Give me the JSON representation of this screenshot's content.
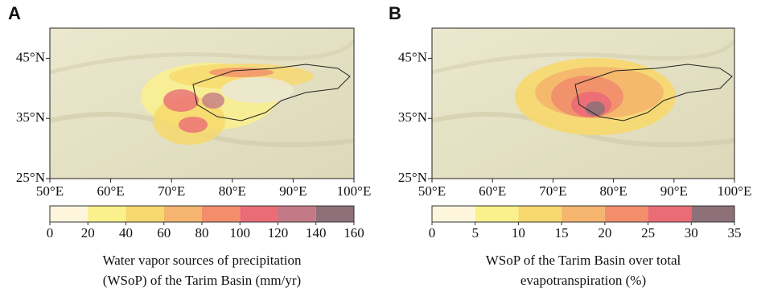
{
  "panels": [
    {
      "label": "A",
      "xlim": [
        50,
        100
      ],
      "ylim": [
        25,
        50
      ],
      "xticks": [
        {
          "value": 50,
          "label": "50°E"
        },
        {
          "value": 60,
          "label": "60°E"
        },
        {
          "value": 70,
          "label": "70°E"
        },
        {
          "value": 80,
          "label": "80°E"
        },
        {
          "value": 90,
          "label": "90°E"
        },
        {
          "value": 100,
          "label": "100°E"
        }
      ],
      "yticks": [
        {
          "value": 25,
          "label": "25°N"
        },
        {
          "value": 35,
          "label": "35°N"
        },
        {
          "value": 45,
          "label": "45°N"
        }
      ],
      "colorbar": {
        "ticks": [
          0,
          20,
          40,
          60,
          80,
          100,
          120,
          140,
          160
        ],
        "colors": [
          "#fdf6dc",
          "#faf08c",
          "#f7d86c",
          "#f5b56e",
          "#f28e6c",
          "#ea6c76",
          "#c47a86",
          "#8e7079"
        ]
      },
      "caption": [
        "Water vapor sources of precipitation",
        "(WSoP) of the Tarim Basin (mm/yr)"
      ]
    },
    {
      "label": "B",
      "xlim": [
        50,
        100
      ],
      "ylim": [
        25,
        50
      ],
      "xticks": [
        {
          "value": 50,
          "label": "50°E"
        },
        {
          "value": 60,
          "label": "60°E"
        },
        {
          "value": 70,
          "label": "70°E"
        },
        {
          "value": 80,
          "label": "80°E"
        },
        {
          "value": 90,
          "label": "90°E"
        },
        {
          "value": 100,
          "label": "100°E"
        }
      ],
      "yticks": [
        {
          "value": 25,
          "label": "25°N"
        },
        {
          "value": 35,
          "label": "35°N"
        },
        {
          "value": 45,
          "label": "45°N"
        }
      ],
      "colorbar": {
        "ticks": [
          0,
          5,
          10,
          15,
          20,
          25,
          30,
          35
        ],
        "colors": [
          "#fdf6dc",
          "#faf08c",
          "#f7d86c",
          "#f5b56e",
          "#f28e6c",
          "#ea6c76",
          "#8e7079"
        ]
      },
      "caption": [
        "WSoP of the Tarim Basin over total",
        "evapotranspiration (%)"
      ]
    }
  ]
}
